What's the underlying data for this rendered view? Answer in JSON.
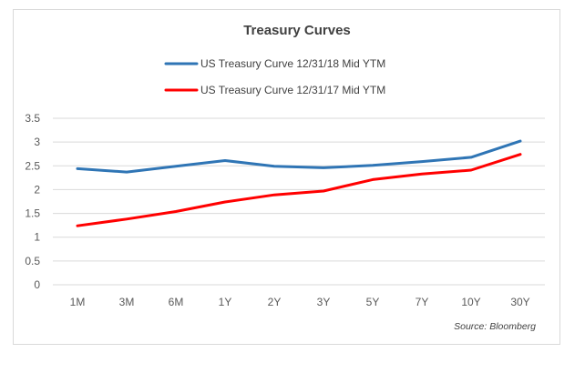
{
  "chart_data": {
    "type": "line",
    "title": "Treasury Curves",
    "xlabel": "",
    "ylabel": "",
    "categories": [
      "1M",
      "3M",
      "6M",
      "1Y",
      "2Y",
      "3Y",
      "5Y",
      "7Y",
      "10Y",
      "30Y"
    ],
    "y_ticks": [
      "3.5",
      "3",
      "2.5",
      "2",
      "1.5",
      "1",
      "0.5",
      "0"
    ],
    "ylim": [
      0,
      3.5
    ],
    "grid": true,
    "legend_position": "top",
    "series": [
      {
        "name": "US Treasury Curve 12/31/18 Mid YTM",
        "color": "#2f75b5",
        "values": [
          2.44,
          2.37,
          2.49,
          2.61,
          2.49,
          2.46,
          2.51,
          2.59,
          2.68,
          3.02
        ]
      },
      {
        "name": "US Treasury Curve 12/31/17 Mid YTM",
        "color": "#ff0000",
        "values": [
          1.24,
          1.38,
          1.54,
          1.74,
          1.89,
          1.97,
          2.21,
          2.33,
          2.41,
          2.74
        ]
      }
    ],
    "source": "Source: Bloomberg",
    "colors": {
      "gridline": "#d9d9d9",
      "axis_text": "#595959",
      "title": "#404040",
      "frame_border": "#d9d9d9"
    }
  }
}
